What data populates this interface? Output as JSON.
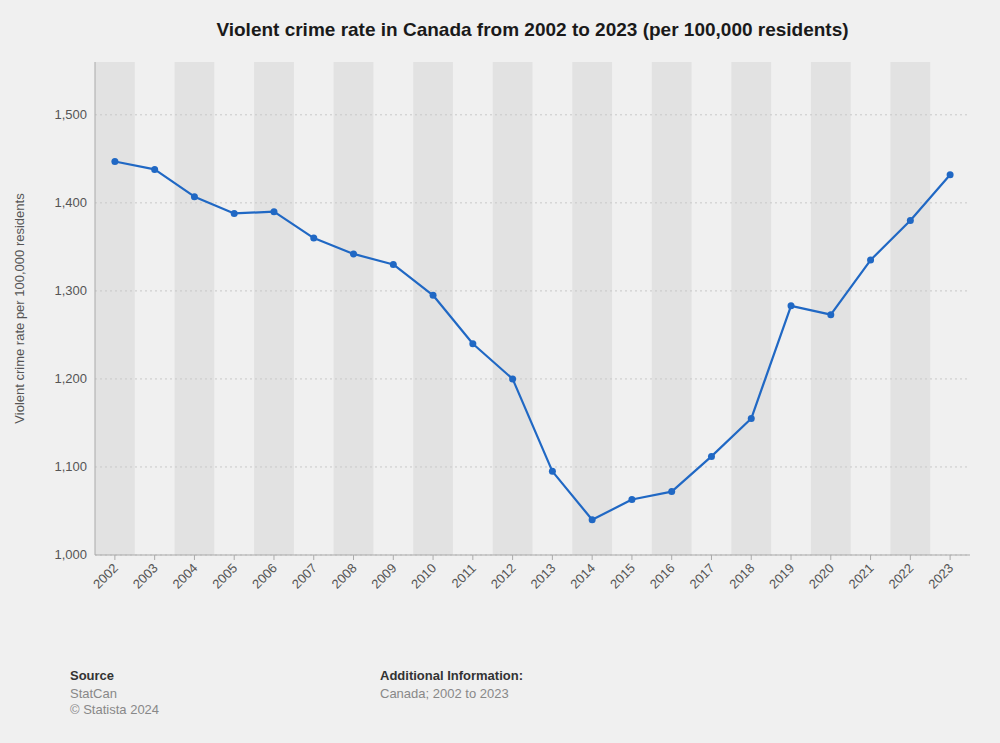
{
  "chart_data": {
    "type": "line",
    "title": "Violent crime rate in Canada from 2002 to 2023 (per 100,000 residents)",
    "y_label": "Violent crime rate per 100,000 residents",
    "x": [
      2002,
      2003,
      2004,
      2005,
      2006,
      2007,
      2008,
      2009,
      2010,
      2011,
      2012,
      2013,
      2014,
      2015,
      2016,
      2017,
      2018,
      2019,
      2020,
      2021,
      2022,
      2023
    ],
    "values": [
      1447,
      1438,
      1407,
      1388,
      1390,
      1360,
      1342,
      1330,
      1295,
      1240,
      1200,
      1095,
      1040,
      1063,
      1072,
      1112,
      1155,
      1283,
      1273,
      1335,
      1380,
      1432
    ],
    "color": "#2068C4",
    "marker": "circle",
    "xlim": [
      2001.5,
      2023.5
    ],
    "xticks": [
      2002,
      2003,
      2004,
      2005,
      2006,
      2007,
      2008,
      2009,
      2010,
      2011,
      2012,
      2013,
      2014,
      2015,
      2016,
      2017,
      2018,
      2019,
      2020,
      2021,
      2022,
      2023
    ],
    "ylim": [
      1000,
      1560
    ],
    "yticks": [
      {
        "value": 1000,
        "label": "1,000"
      },
      {
        "value": 1100,
        "label": "1,100"
      },
      {
        "value": 1200,
        "label": "1,200"
      },
      {
        "value": 1300,
        "label": "1,300"
      },
      {
        "value": 1400,
        "label": "1,400"
      },
      {
        "value": 1500,
        "label": "1,500"
      }
    ],
    "grid": true,
    "annotations": [
      {
        "label": "Source",
        "text": "StatCan\n© Statista 2024"
      },
      {
        "label": "Additional Information:",
        "text": "Canada; 2002 to 2023"
      }
    ]
  }
}
